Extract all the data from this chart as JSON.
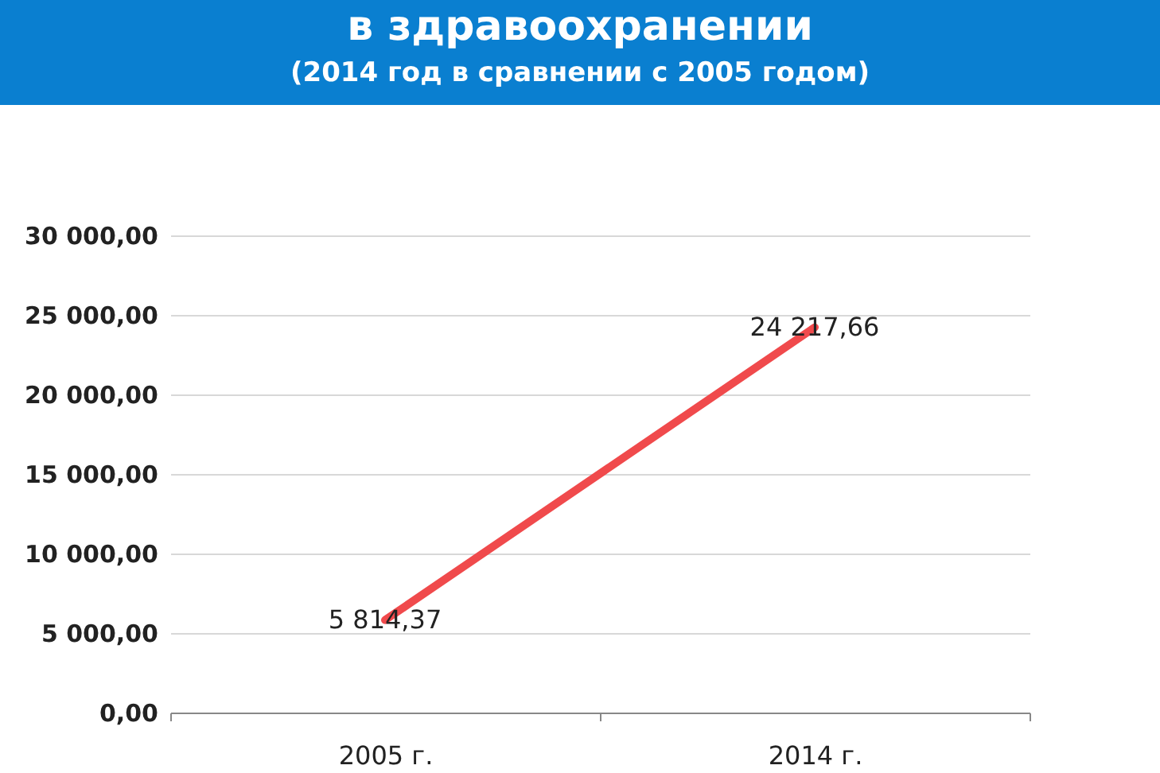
{
  "chart_data": {
    "type": "line",
    "title": "в здравоохранении",
    "subtitle": "(2014 год в сравнении с 2005 годом)",
    "categories": [
      "2005 г.",
      "2014 г."
    ],
    "series": [
      {
        "color": "#f04a4c",
        "values": [
          5814.37,
          24217.66
        ],
        "value_labels": [
          "5 814,37",
          "24 217,66"
        ]
      }
    ],
    "ylim": [
      0,
      30000
    ],
    "yticks": [
      {
        "value": 0,
        "label": "0,00"
      },
      {
        "value": 5000,
        "label": "5 000,00"
      },
      {
        "value": 10000,
        "label": "10 000,00"
      },
      {
        "value": 15000,
        "label": "15 000,00"
      },
      {
        "value": 20000,
        "label": "20 000,00"
      },
      {
        "value": 25000,
        "label": "25 000,00"
      },
      {
        "value": 30000,
        "label": "30 000,00"
      }
    ],
    "grid": "y",
    "legend": false,
    "marker": "none",
    "line_style": "solid"
  }
}
